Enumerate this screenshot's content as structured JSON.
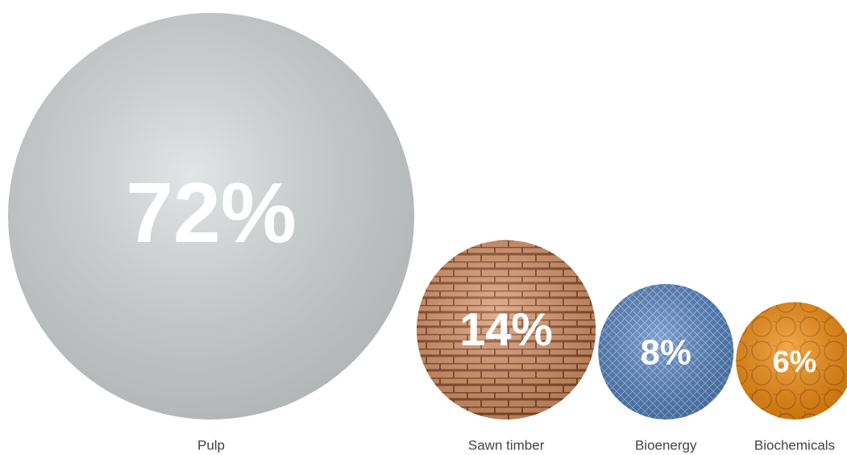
{
  "chart_data": {
    "type": "bubble",
    "categories": [
      "Pulp",
      "Sawn timber",
      "Bioenergy",
      "Biochemicals"
    ],
    "values": [
      72,
      14,
      8,
      6
    ],
    "value_labels": [
      "72%",
      "14%",
      "8%",
      "6%"
    ],
    "colors": [
      "#d9dcdd",
      "#d9956a",
      "#4f7fbf",
      "#f28c0f"
    ]
  }
}
